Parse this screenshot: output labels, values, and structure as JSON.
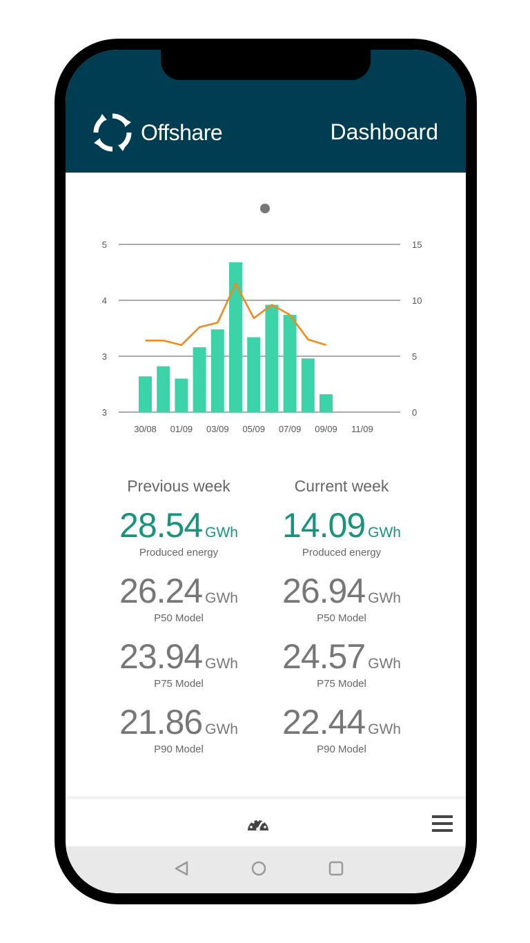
{
  "app": {
    "name": "Offshare",
    "page_title": "Dashboard"
  },
  "icons": {
    "logo": "offshare-logo-icon",
    "dashboard": "dashboard-gauge-icon",
    "menu": "hamburger-menu-icon",
    "back": "back-triangle-icon",
    "home": "home-circle-icon",
    "recents": "recents-square-icon"
  },
  "colors": {
    "header": "#003d52",
    "bar": "#3dd3a8",
    "line": "#f08a1c",
    "accent": "#17957c"
  },
  "chart_data": {
    "type": "bar",
    "categories": [
      "30/08",
      "31/08",
      "01/09",
      "02/09",
      "03/09",
      "04/09",
      "05/09",
      "06/09",
      "07/09",
      "08/09",
      "09/09",
      "10/09",
      "11/09"
    ],
    "x_tick_labels": [
      "30/08",
      "01/09",
      "03/09",
      "05/09",
      "07/09",
      "09/09",
      "11/09"
    ],
    "left_tick_labels": [
      "5",
      "4",
      "3",
      "3"
    ],
    "right_ylim": [
      0,
      15
    ],
    "right_tick_labels": [
      "15",
      "10",
      "5",
      "0"
    ],
    "grid": true,
    "series": [
      {
        "type": "bar",
        "axis": "right",
        "values": [
          3.2,
          4.1,
          3.0,
          5.8,
          7.4,
          13.4,
          6.7,
          9.6,
          8.7,
          4.8,
          1.6,
          null,
          null
        ]
      },
      {
        "type": "line",
        "axis": "right",
        "values": [
          6.4,
          6.4,
          6.0,
          7.6,
          8.0,
          11.5,
          8.4,
          9.6,
          8.7,
          6.5,
          6.0,
          null,
          null
        ]
      }
    ]
  },
  "stats": {
    "previous": {
      "title": "Previous week",
      "items": [
        {
          "value": "28.54",
          "unit": "GWh",
          "label": "Produced energy"
        },
        {
          "value": "26.24",
          "unit": "GWh",
          "label": "P50 Model"
        },
        {
          "value": "23.94",
          "unit": "GWh",
          "label": "P75 Model"
        },
        {
          "value": "21.86",
          "unit": "GWh",
          "label": "P90 Model"
        }
      ]
    },
    "current": {
      "title": "Current week",
      "items": [
        {
          "value": "14.09",
          "unit": "GWh",
          "label": "Produced energy"
        },
        {
          "value": "26.94",
          "unit": "GWh",
          "label": "P50 Model"
        },
        {
          "value": "24.57",
          "unit": "GWh",
          "label": "P75 Model"
        },
        {
          "value": "22.44",
          "unit": "GWh",
          "label": "P90 Model"
        }
      ]
    }
  }
}
